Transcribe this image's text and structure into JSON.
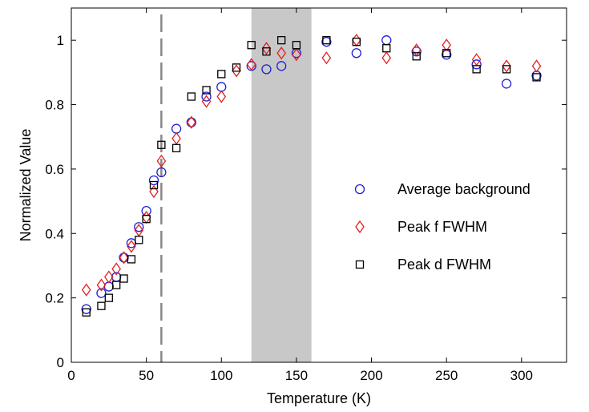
{
  "chart_data": {
    "type": "scatter",
    "title": "",
    "xlabel": "Temperature (K)",
    "ylabel": "Normalized Value",
    "xlim": [
      0,
      330
    ],
    "ylim": [
      0,
      1.1
    ],
    "xticks": [
      0,
      50,
      100,
      150,
      200,
      250,
      300
    ],
    "yticks": [
      0,
      0.2,
      0.4,
      0.6,
      0.8,
      1
    ],
    "x_tick_labels": [
      "0",
      "50",
      "100",
      "150",
      "200",
      "250",
      "300"
    ],
    "y_tick_labels": [
      "0",
      "0.2",
      "0.4",
      "0.6",
      "0.8",
      "1"
    ],
    "grid": false,
    "legend_position": "right",
    "vertical_line": {
      "x": 60,
      "style": "dashed",
      "color": "#888888"
    },
    "shaded_region": {
      "x_from": 120,
      "x_to": 160,
      "color": "#c8c8c8"
    },
    "series": [
      {
        "name": "Average background",
        "marker": "circle",
        "color": "#1f1fd6",
        "x": [
          10,
          20,
          25,
          30,
          35,
          40,
          45,
          50,
          55,
          60,
          70,
          80,
          90,
          100,
          120,
          130,
          140,
          150,
          170,
          190,
          210,
          230,
          250,
          270,
          290,
          310
        ],
        "y": [
          0.165,
          0.215,
          0.235,
          0.265,
          0.325,
          0.37,
          0.42,
          0.47,
          0.565,
          0.59,
          0.725,
          0.745,
          0.825,
          0.855,
          0.92,
          0.91,
          0.92,
          0.96,
          0.995,
          0.96,
          1.0,
          0.965,
          0.955,
          0.925,
          0.865,
          0.89
        ]
      },
      {
        "name": "Peak f FWHM",
        "marker": "diamond",
        "color": "#e02020",
        "x": [
          10,
          20,
          25,
          30,
          35,
          40,
          45,
          50,
          55,
          60,
          70,
          80,
          90,
          100,
          110,
          120,
          130,
          140,
          150,
          170,
          190,
          210,
          230,
          250,
          270,
          290,
          310
        ],
        "y": [
          0.225,
          0.24,
          0.265,
          0.29,
          0.325,
          0.36,
          0.41,
          0.45,
          0.53,
          0.625,
          0.695,
          0.745,
          0.81,
          0.825,
          0.905,
          0.925,
          0.975,
          0.96,
          0.955,
          0.945,
          1.0,
          0.945,
          0.97,
          0.985,
          0.94,
          0.92,
          0.92
        ]
      },
      {
        "name": "Peak d FWHM",
        "marker": "square",
        "color": "#000000",
        "x": [
          10,
          20,
          25,
          30,
          35,
          40,
          45,
          50,
          55,
          60,
          70,
          80,
          90,
          100,
          110,
          120,
          130,
          140,
          150,
          170,
          190,
          210,
          230,
          250,
          270,
          290,
          310
        ],
        "y": [
          0.155,
          0.175,
          0.2,
          0.24,
          0.26,
          0.32,
          0.38,
          0.445,
          0.55,
          0.675,
          0.665,
          0.825,
          0.845,
          0.895,
          0.915,
          0.985,
          0.965,
          1.0,
          0.985,
          1.0,
          0.995,
          0.975,
          0.95,
          0.96,
          0.91,
          0.91,
          0.885
        ]
      }
    ]
  }
}
